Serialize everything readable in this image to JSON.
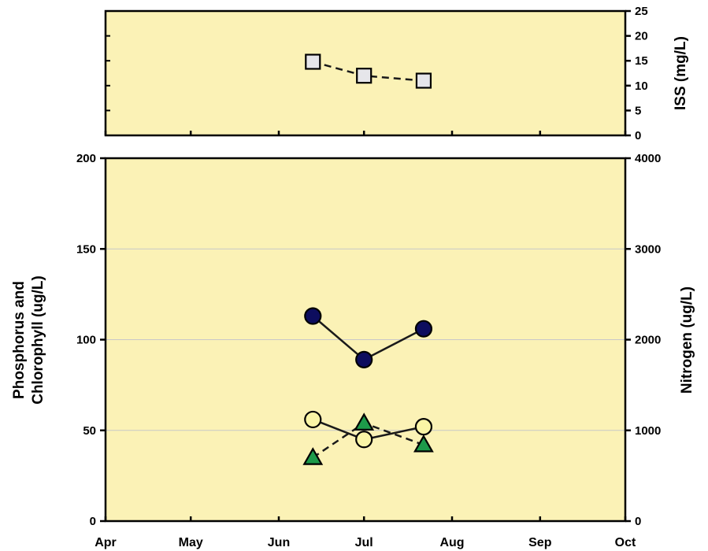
{
  "chart_data": [
    {
      "type": "line",
      "panel": "top",
      "x_unit": "month",
      "x_categories": [
        "Apr",
        "May",
        "Jun",
        "Jul",
        "Aug",
        "Sep",
        "Oct"
      ],
      "ylabel_right": "ISS (mg/L)",
      "yticks_right": [
        "0",
        "5",
        "10",
        "15",
        "20",
        "25"
      ],
      "ylim_right": [
        0,
        25
      ],
      "grid": false,
      "series": [
        {
          "marker": "square",
          "color": "#e6e6ea",
          "line_style": "dashed",
          "points": [
            {
              "x": "Jun 13",
              "y": 14.8
            },
            {
              "x": "Jul 1",
              "y": 12.0
            },
            {
              "x": "Jul 22",
              "y": 11.0
            }
          ]
        }
      ]
    },
    {
      "type": "line",
      "panel": "bottom",
      "x_categories": [
        "Apr",
        "May",
        "Jun",
        "Jul",
        "Aug",
        "Sep",
        "Oct"
      ],
      "ylabel_left": [
        "Phosphorus and",
        "Chlorophyll (ug/L)"
      ],
      "ylabel_right": "Nitrogen (ug/L)",
      "yticks_left": [
        "0",
        "50",
        "100",
        "150",
        "200"
      ],
      "ylim_left": [
        0,
        200
      ],
      "yticks_right": [
        "0",
        "1000",
        "2000",
        "3000",
        "4000"
      ],
      "ylim_right": [
        0,
        4000
      ],
      "grid": true,
      "series": [
        {
          "marker": "circle",
          "color": "#0d0d5e",
          "line_style": "solid",
          "axis": "right",
          "points": [
            {
              "x": "Jun 13",
              "y": 2260
            },
            {
              "x": "Jul 1",
              "y": 1780
            },
            {
              "x": "Jul 22",
              "y": 2120
            }
          ]
        },
        {
          "marker": "circle",
          "color": "#faf5a6",
          "line_style": "solid",
          "axis": "left",
          "points": [
            {
              "x": "Jun 13",
              "y": 56
            },
            {
              "x": "Jul 1",
              "y": 45
            },
            {
              "x": "Jul 22",
              "y": 52
            }
          ]
        },
        {
          "marker": "triangle",
          "color": "#1d9a4a",
          "line_style": "dashed",
          "axis": "left",
          "points": [
            {
              "x": "Jun 13",
              "y": 35
            },
            {
              "x": "Jul 1",
              "y": 54
            },
            {
              "x": "Jul 22",
              "y": 42
            }
          ]
        }
      ]
    }
  ],
  "colors": {
    "plot_background": "#fbf2b6",
    "gridline": "#c8c8c8",
    "line": "#1a1a1a"
  }
}
